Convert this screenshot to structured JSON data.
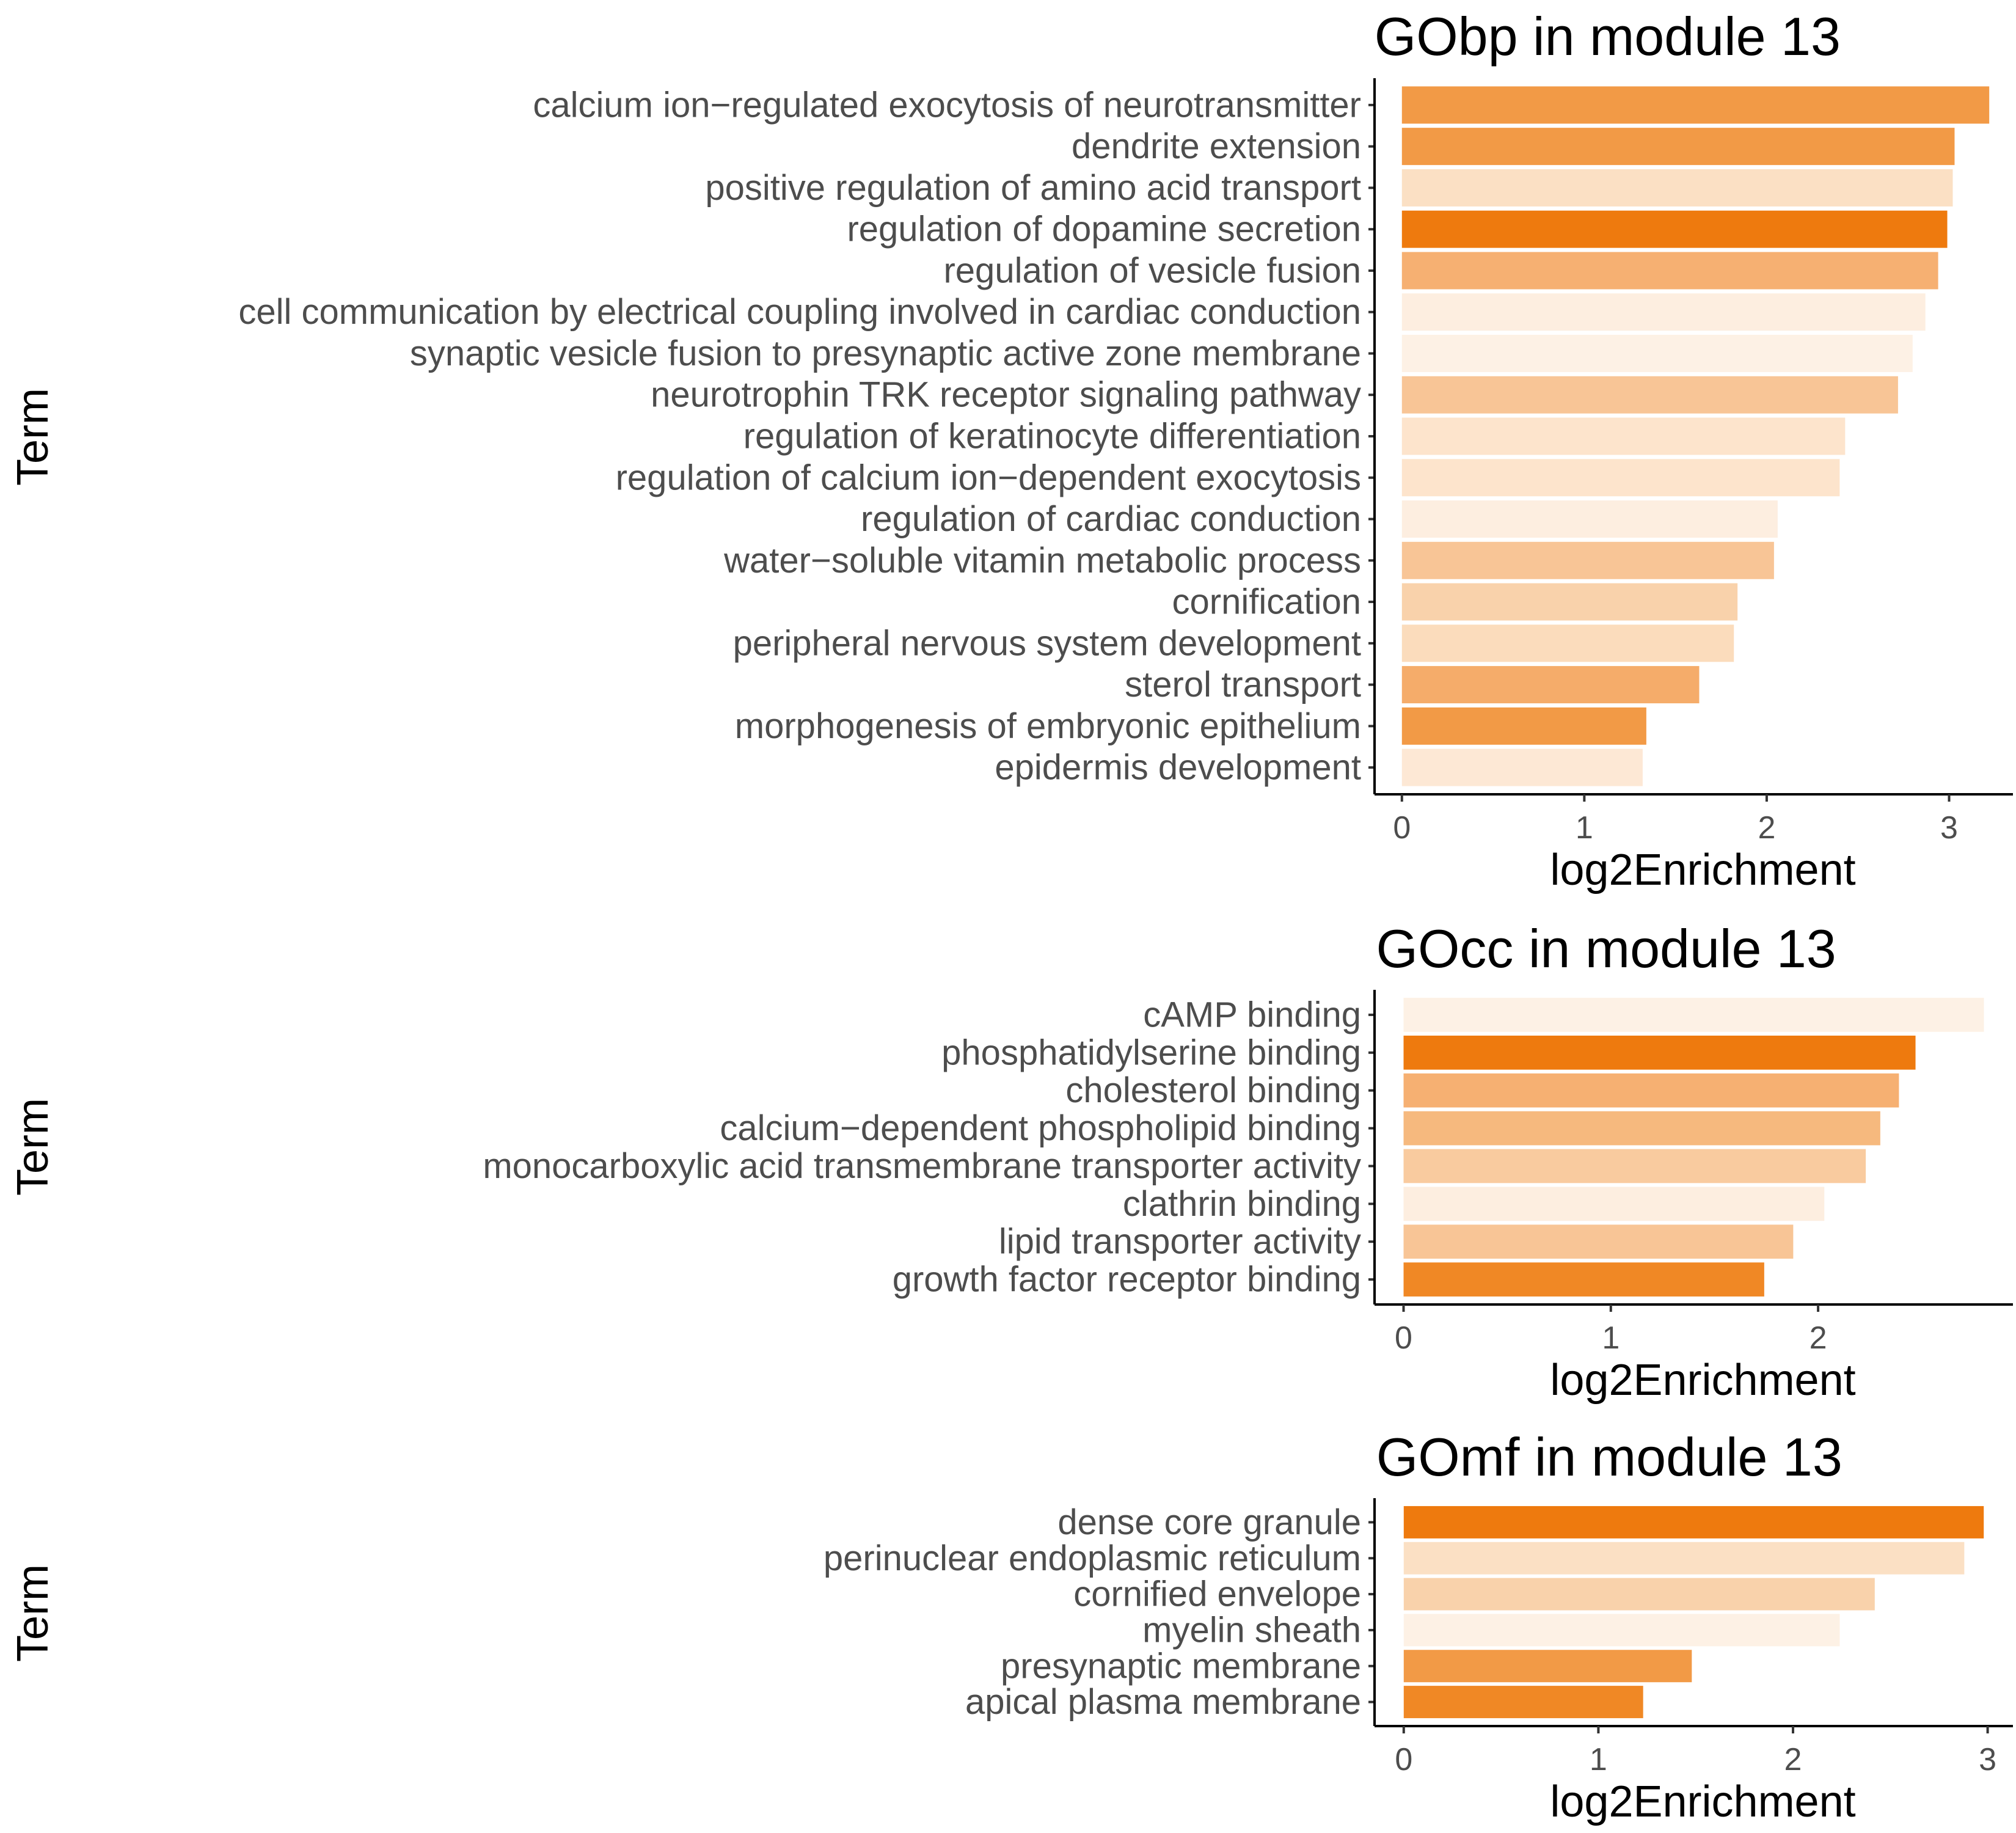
{
  "chart_data": [
    {
      "type": "bar",
      "orientation": "horizontal",
      "title": "GObp in module 13",
      "xlabel": "log2Enrichment",
      "ylabel": "Term",
      "xlim": [
        -0.15,
        3.35
      ],
      "xticks": [
        0,
        1,
        2,
        3
      ],
      "grid": false,
      "legend": "none",
      "categories": [
        "calcium ion−regulated exocytosis of neurotransmitter",
        "dendrite extension",
        "positive regulation of amino acid transport",
        "regulation of dopamine secretion",
        "regulation of vesicle fusion",
        "cell communication by electrical coupling involved in cardiac conduction",
        "synaptic vesicle fusion to presynaptic active zone membrane",
        "neurotrophin TRK receptor signaling pathway",
        "regulation of keratinocyte differentiation",
        "regulation of calcium ion−dependent exocytosis",
        "regulation of cardiac conduction",
        "water−soluble vitamin metabolic process",
        "cornification",
        "peripheral nervous system development",
        "sterol transport",
        "morphogenesis of embryonic epithelium",
        "epidermis development"
      ],
      "values": [
        3.22,
        3.03,
        3.02,
        2.99,
        2.94,
        2.87,
        2.8,
        2.72,
        2.43,
        2.4,
        2.06,
        2.04,
        1.84,
        1.82,
        1.63,
        1.34,
        1.32
      ],
      "colors": [
        "#f29a46",
        "#f29a46",
        "#fbe0c4",
        "#ee7a0e",
        "#f6b072",
        "#fdeee0",
        "#fdf1e5",
        "#f8c596",
        "#fde4cc",
        "#fde4cc",
        "#fdeee0",
        "#f8c596",
        "#f9d2ab",
        "#fbdcbc",
        "#f5ac6a",
        "#f29a46",
        "#fde8d5"
      ]
    },
    {
      "type": "bar",
      "orientation": "horizontal",
      "title": "GOcc in module 13",
      "xlabel": "log2Enrichment",
      "ylabel": "Term",
      "xlim": [
        -0.14,
        2.94
      ],
      "xticks": [
        0,
        1,
        2
      ],
      "grid": false,
      "legend": "none",
      "categories": [
        "cAMP binding",
        "phosphatidylserine binding",
        "cholesterol binding",
        "calcium−dependent phospholipid binding",
        "monocarboxylic acid transmembrane transporter activity",
        "clathrin binding",
        "lipid transporter activity",
        "growth factor receptor binding"
      ],
      "values": [
        2.8,
        2.47,
        2.39,
        2.3,
        2.23,
        2.03,
        1.88,
        1.74
      ],
      "colors": [
        "#fdf1e5",
        "#ee7a0e",
        "#f6b072",
        "#f6b97e",
        "#f9cb9f",
        "#fdeee0",
        "#f8c596",
        "#f08825"
      ]
    },
    {
      "type": "bar",
      "orientation": "horizontal",
      "title": "GOmf in module 13",
      "xlabel": "log2Enrichment",
      "ylabel": "Term",
      "xlim": [
        -0.15,
        3.13
      ],
      "xticks": [
        0,
        1,
        2,
        3
      ],
      "grid": false,
      "legend": "none",
      "categories": [
        "dense core granule",
        "perinuclear endoplasmic reticulum",
        "cornified envelope",
        "myelin sheath",
        "presynaptic membrane",
        "apical plasma membrane"
      ],
      "values": [
        2.98,
        2.88,
        2.42,
        2.24,
        1.48,
        1.23
      ],
      "colors": [
        "#ee7a0e",
        "#fbe0c4",
        "#f9d2ab",
        "#fdf1e5",
        "#f29a46",
        "#f08825"
      ]
    }
  ]
}
